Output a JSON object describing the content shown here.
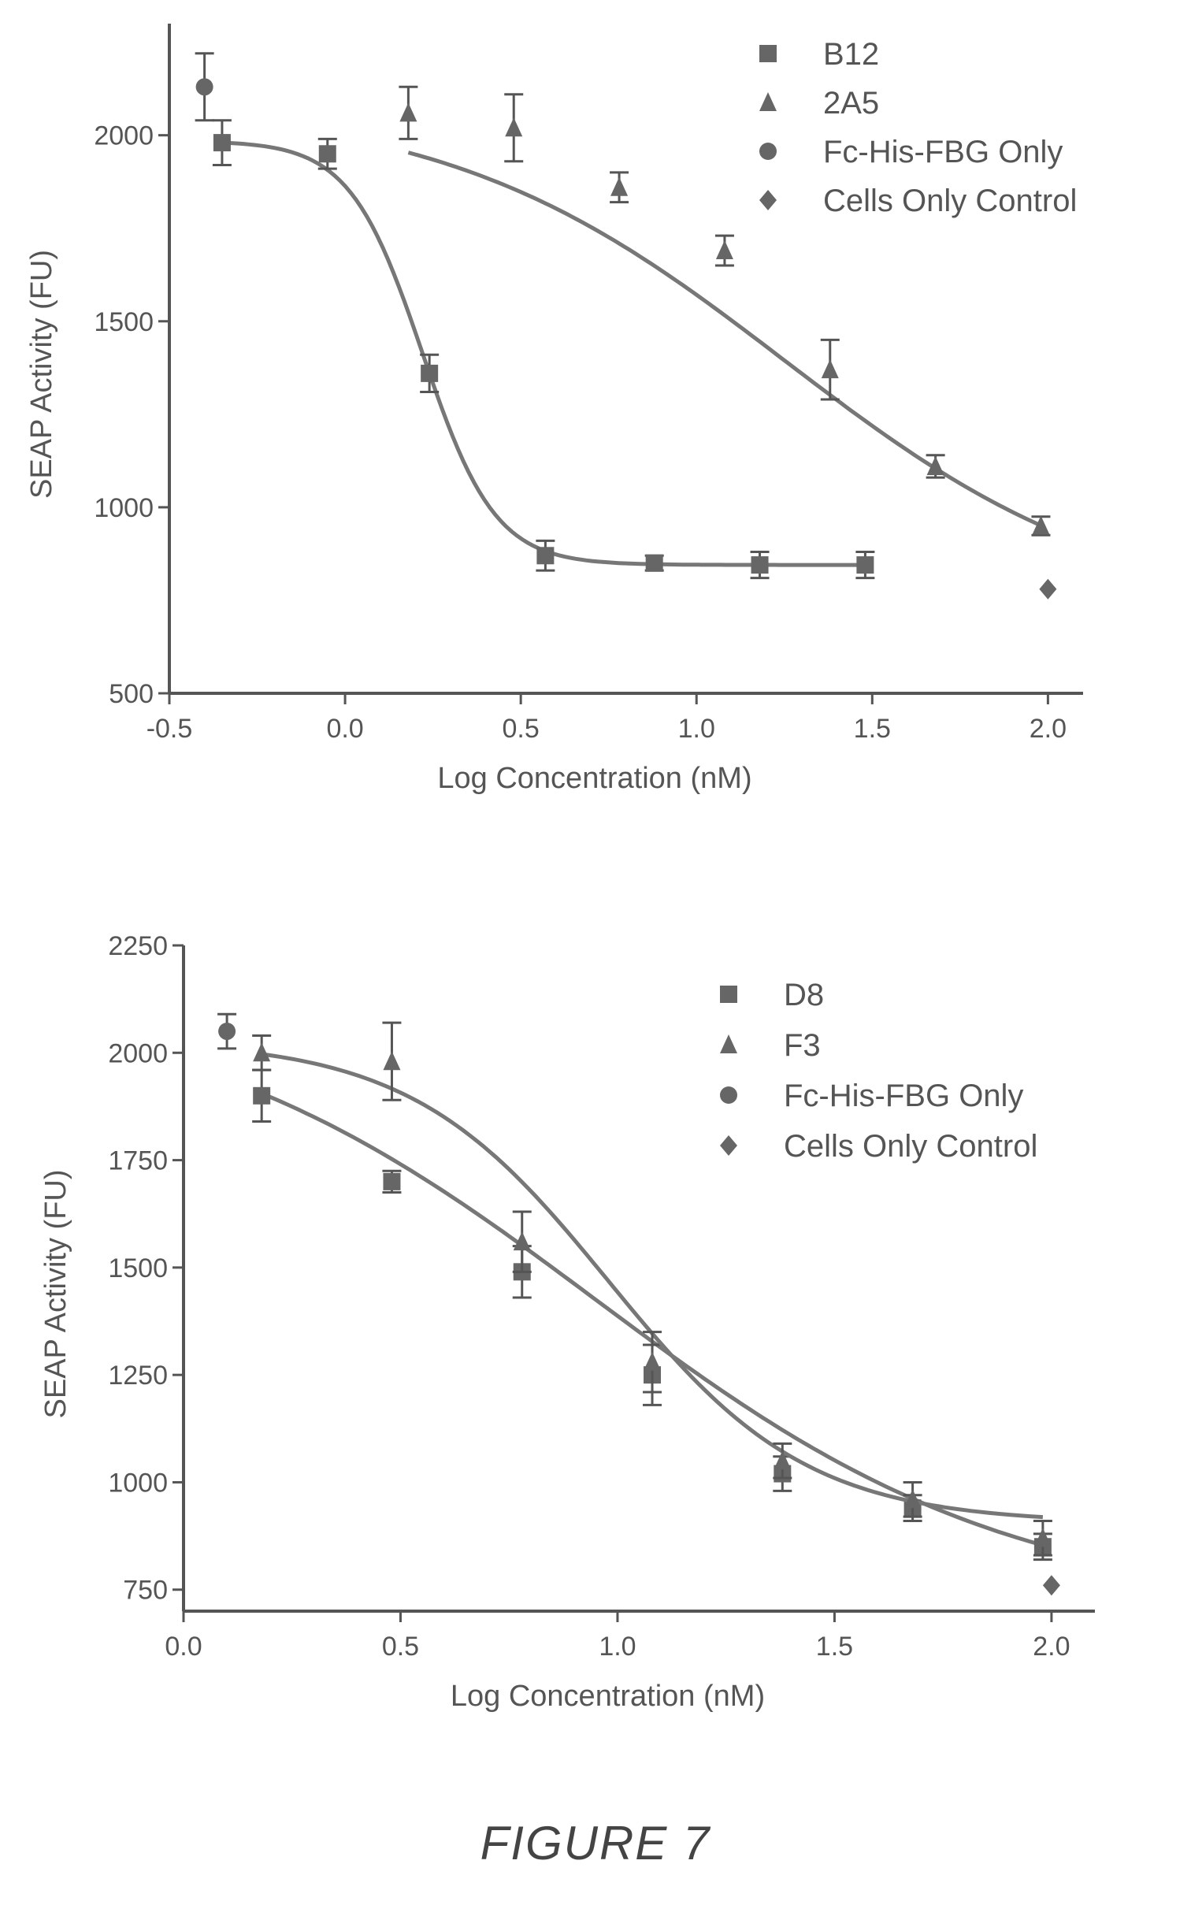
{
  "figure_label": "FIGURE 7",
  "chart_data": [
    {
      "type": "line",
      "xlabel": "Log Concentration (nM)",
      "ylabel": "SEAP Activity (FU)",
      "xlim": [
        -0.5,
        2.1
      ],
      "ylim": [
        500,
        2300
      ],
      "xticks": [
        -0.5,
        0.0,
        0.5,
        1.0,
        1.5,
        2.0
      ],
      "xtick_labels": [
        "-0.5",
        "0.0",
        "0.5",
        "1.0",
        "1.5",
        "2.0"
      ],
      "yticks": [
        500,
        1000,
        1500,
        2000
      ],
      "ytick_labels": [
        "500",
        "1000",
        "1500",
        "2000"
      ],
      "legend": "top-right",
      "series": [
        {
          "name": "B12",
          "marker": "square",
          "x": [
            -0.35,
            -0.05,
            0.24,
            0.57,
            0.88,
            1.18,
            1.48
          ],
          "y": [
            1980,
            1950,
            1360,
            870,
            850,
            845,
            845
          ],
          "err": [
            60,
            40,
            50,
            40,
            20,
            35,
            35
          ],
          "fit": {
            "bottom": 845,
            "top": 1985,
            "logec50": 0.22,
            "hill": -4.2
          }
        },
        {
          "name": "2A5",
          "marker": "triangle",
          "x": [
            0.18,
            0.48,
            0.78,
            1.08,
            1.38,
            1.68,
            1.98
          ],
          "y": [
            2060,
            2020,
            1860,
            1690,
            1370,
            1110,
            950
          ],
          "err": [
            70,
            90,
            40,
            40,
            80,
            30,
            25
          ],
          "fit": {
            "bottom": 700,
            "top": 2090,
            "logec50": 1.25,
            "hill": -0.9
          }
        },
        {
          "name": "Fc-His-FBG Only",
          "marker": "circle",
          "x": [
            -0.4
          ],
          "y": [
            2130
          ],
          "err": [
            90
          ]
        },
        {
          "name": "Cells Only Control",
          "marker": "diamond",
          "x": [
            2.0
          ],
          "y": [
            780
          ],
          "err": [
            0
          ]
        }
      ]
    },
    {
      "type": "line",
      "xlabel": "Log Concentration (nM)",
      "ylabel": "SEAP Activity (FU)",
      "xlim": [
        0.0,
        2.1
      ],
      "ylim": [
        700,
        2250
      ],
      "xticks": [
        0.0,
        0.5,
        1.0,
        1.5,
        2.0
      ],
      "xtick_labels": [
        "0.0",
        "0.5",
        "1.0",
        "1.5",
        "2.0"
      ],
      "yticks": [
        750,
        1000,
        1250,
        1500,
        1750,
        2000,
        2250
      ],
      "ytick_labels": [
        "750",
        "1000",
        "1250",
        "1500",
        "1750",
        "2000",
        "2250"
      ],
      "legend": "top-right",
      "series": [
        {
          "name": "D8",
          "marker": "square",
          "x": [
            0.18,
            0.48,
            0.78,
            1.08,
            1.38,
            1.68,
            1.98
          ],
          "y": [
            1900,
            1700,
            1490,
            1250,
            1020,
            940,
            850
          ],
          "err": [
            60,
            25,
            60,
            70,
            40,
            30,
            30
          ],
          "fit": {
            "bottom": 700,
            "top": 2150,
            "logec50": 0.95,
            "hill": -0.9
          }
        },
        {
          "name": "F3",
          "marker": "triangle",
          "x": [
            0.18,
            0.48,
            0.78,
            1.08,
            1.38,
            1.68,
            1.98
          ],
          "y": [
            2000,
            1980,
            1560,
            1280,
            1050,
            960,
            870
          ],
          "err": [
            40,
            90,
            70,
            70,
            40,
            40,
            40
          ],
          "fit": {
            "bottom": 905,
            "top": 2030,
            "logec50": 0.98,
            "hill": -1.9
          }
        },
        {
          "name": "Fc-His-FBG Only",
          "marker": "circle",
          "x": [
            0.1
          ],
          "y": [
            2050
          ],
          "err": [
            40
          ]
        },
        {
          "name": "Cells Only Control",
          "marker": "diamond",
          "x": [
            2.0
          ],
          "y": [
            760
          ],
          "err": [
            0
          ]
        }
      ]
    }
  ]
}
